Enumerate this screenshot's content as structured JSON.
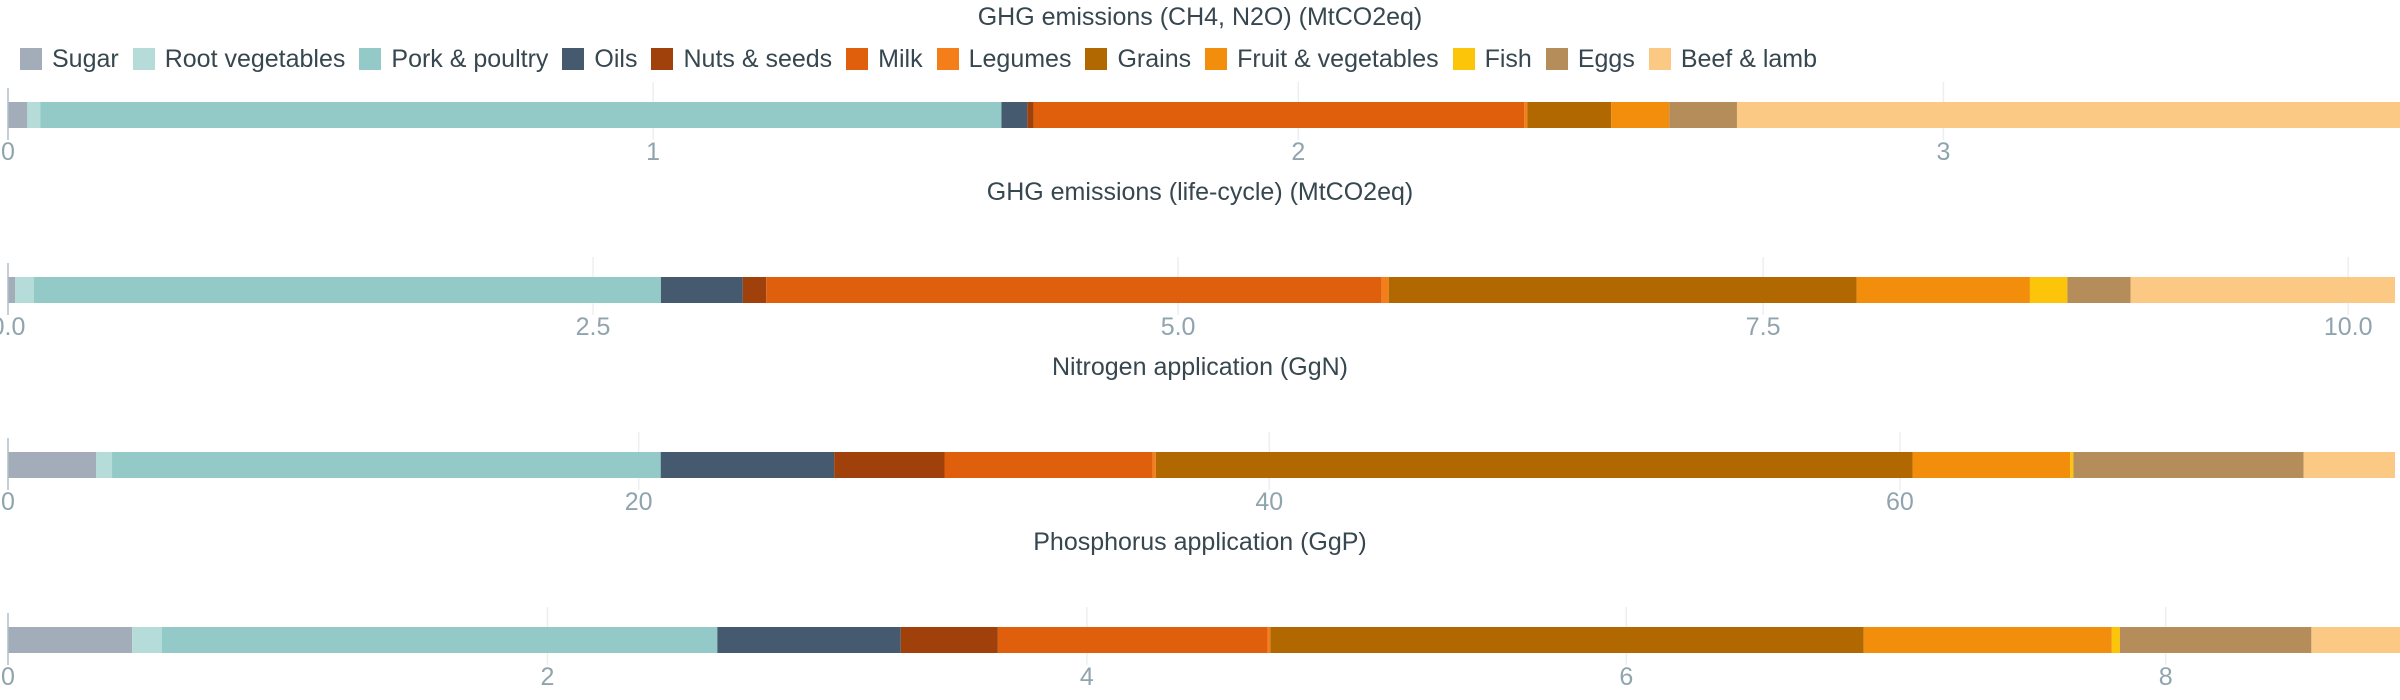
{
  "legend": {
    "items": [
      {
        "label": "Sugar",
        "color": "#a2adb9"
      },
      {
        "label": "Root vegetables",
        "color": "#b5dcd9"
      },
      {
        "label": "Pork & poultry",
        "color": "#93c9c6"
      },
      {
        "label": "Oils",
        "color": "#455a6e"
      },
      {
        "label": "Nuts & seeds",
        "color": "#a0410b"
      },
      {
        "label": "Milk",
        "color": "#e05f0c"
      },
      {
        "label": "Legumes",
        "color": "#f47f1a"
      },
      {
        "label": "Grains",
        "color": "#b26800"
      },
      {
        "label": "Fruit & vegetables",
        "color": "#f28e0b"
      },
      {
        "label": "Fish",
        "color": "#fdc509"
      },
      {
        "label": "Eggs",
        "color": "#b58d5b"
      },
      {
        "label": "Beef & lamb",
        "color": "#fcc985"
      }
    ]
  },
  "chart_data": [
    {
      "type": "bar",
      "orientation": "horizontal",
      "stacked": true,
      "title": "GHG emissions (CH4, N2O) (MtCO2eq)",
      "xlim": [
        0,
        3.7
      ],
      "ticks": [
        0,
        1,
        2,
        3
      ],
      "tick_labels": [
        "0",
        "1",
        "2",
        "3"
      ],
      "series": [
        {
          "name": "Sugar",
          "value": 0.03
        },
        {
          "name": "Root vegetables",
          "value": 0.02
        },
        {
          "name": "Pork & poultry",
          "value": 1.49
        },
        {
          "name": "Oils",
          "value": 0.04
        },
        {
          "name": "Nuts & seeds",
          "value": 0.01
        },
        {
          "name": "Milk",
          "value": 0.76
        },
        {
          "name": "Legumes",
          "value": 0.005
        },
        {
          "name": "Grains",
          "value": 0.13
        },
        {
          "name": "Fruit & vegetables",
          "value": 0.09
        },
        {
          "name": "Fish",
          "value": 0.0
        },
        {
          "name": "Eggs",
          "value": 0.105
        },
        {
          "name": "Beef & lamb",
          "value": 1.035
        }
      ]
    },
    {
      "type": "bar",
      "orientation": "horizontal",
      "stacked": true,
      "title": "GHG emissions (life-cycle) (MtCO2eq)",
      "xlim": [
        0,
        10.2
      ],
      "ticks": [
        0,
        2.5,
        5,
        7.5,
        10
      ],
      "tick_labels": [
        "0.0",
        "2.5",
        "5.0",
        "7.5",
        "10.0"
      ],
      "series": [
        {
          "name": "Sugar",
          "value": 0.03
        },
        {
          "name": "Root vegetables",
          "value": 0.08
        },
        {
          "name": "Pork & poultry",
          "value": 2.68
        },
        {
          "name": "Oils",
          "value": 0.35
        },
        {
          "name": "Nuts & seeds",
          "value": 0.1
        },
        {
          "name": "Milk",
          "value": 2.63
        },
        {
          "name": "Legumes",
          "value": 0.03
        },
        {
          "name": "Grains",
          "value": 2.0
        },
        {
          "name": "Fruit & vegetables",
          "value": 0.74
        },
        {
          "name": "Fish",
          "value": 0.16
        },
        {
          "name": "Eggs",
          "value": 0.27
        },
        {
          "name": "Beef & lamb",
          "value": 1.13
        }
      ]
    },
    {
      "type": "bar",
      "orientation": "horizontal",
      "stacked": true,
      "title": "Nitrogen application (GgN)",
      "xlim": [
        0,
        75.7
      ],
      "ticks": [
        0,
        20,
        40,
        60
      ],
      "tick_labels": [
        "0",
        "20",
        "40",
        "60"
      ],
      "series": [
        {
          "name": "Sugar",
          "value": 2.8
        },
        {
          "name": "Root vegetables",
          "value": 0.5
        },
        {
          "name": "Pork & poultry",
          "value": 17.4
        },
        {
          "name": "Oils",
          "value": 5.5
        },
        {
          "name": "Nuts & seeds",
          "value": 3.5
        },
        {
          "name": "Milk",
          "value": 6.6
        },
        {
          "name": "Legumes",
          "value": 0.1
        },
        {
          "name": "Grains",
          "value": 24.0
        },
        {
          "name": "Fruit & vegetables",
          "value": 5.0
        },
        {
          "name": "Fish",
          "value": 0.1
        },
        {
          "name": "Eggs",
          "value": 7.3
        },
        {
          "name": "Beef & lamb",
          "value": 2.9
        }
      ]
    },
    {
      "type": "bar",
      "orientation": "horizontal",
      "stacked": true,
      "title": "Phosphorus application (GgP)",
      "xlim": [
        0,
        8.85
      ],
      "ticks": [
        0,
        2,
        4,
        6,
        8
      ],
      "tick_labels": [
        "0",
        "2",
        "4",
        "6",
        "8"
      ],
      "series": [
        {
          "name": "Sugar",
          "value": 0.46
        },
        {
          "name": "Root vegetables",
          "value": 0.11
        },
        {
          "name": "Pork & poultry",
          "value": 2.06
        },
        {
          "name": "Oils",
          "value": 0.68
        },
        {
          "name": "Nuts & seeds",
          "value": 0.36
        },
        {
          "name": "Milk",
          "value": 1.0
        },
        {
          "name": "Legumes",
          "value": 0.01
        },
        {
          "name": "Grains",
          "value": 2.2
        },
        {
          "name": "Fruit & vegetables",
          "value": 0.92
        },
        {
          "name": "Fish",
          "value": 0.03
        },
        {
          "name": "Eggs",
          "value": 0.71
        },
        {
          "name": "Beef & lamb",
          "value": 0.33
        }
      ]
    }
  ]
}
